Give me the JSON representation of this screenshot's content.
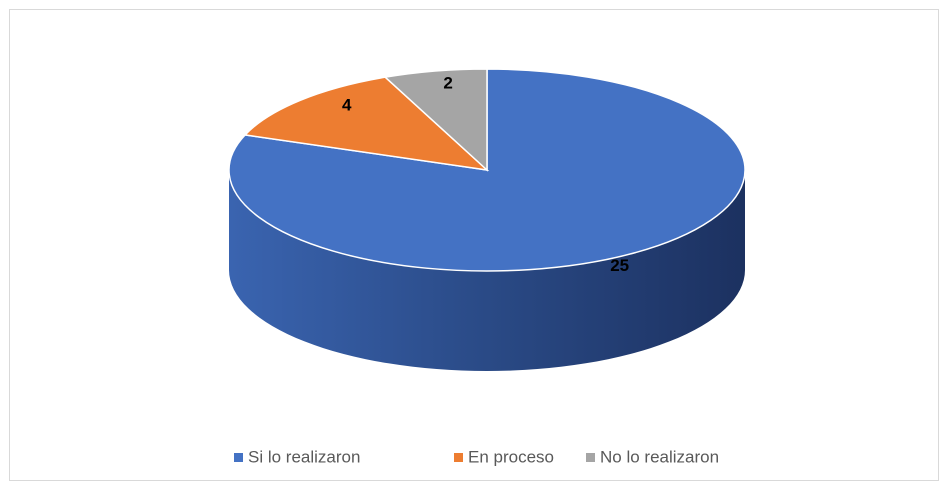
{
  "chart_data": {
    "type": "pie",
    "categories": [
      "Si lo realizaron",
      "En proceso",
      "No lo realizaron"
    ],
    "values": [
      25,
      4,
      2
    ],
    "colors": [
      "#4472c4",
      "#ed7d31",
      "#a5a5a5"
    ],
    "legend": "bottom"
  }
}
